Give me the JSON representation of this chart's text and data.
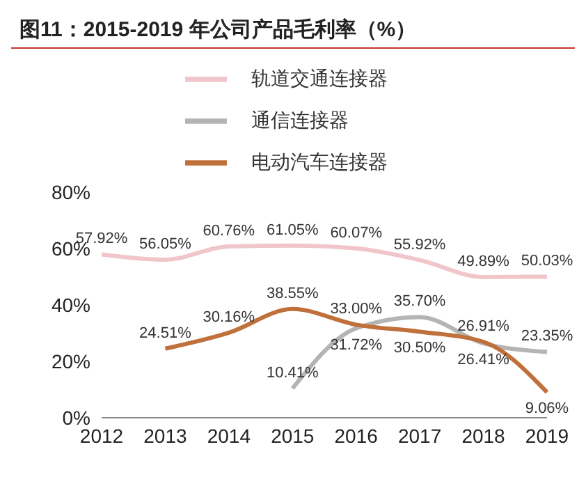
{
  "chart_data": {
    "type": "line",
    "title": "图11：2015-2019 年公司产品毛利率（%）",
    "categories": [
      "2012",
      "2013",
      "2014",
      "2015",
      "2016",
      "2017",
      "2018",
      "2019"
    ],
    "series": [
      {
        "name": "轨道交通连接器",
        "color": "#f0c6ca",
        "values": [
          57.92,
          56.05,
          60.76,
          61.05,
          60.07,
          55.92,
          49.89,
          50.03
        ],
        "value_labels": [
          "57.92%",
          "56.05%",
          "60.76%",
          "61.05%",
          "60.07%",
          "55.92%",
          "49.89%",
          "50.03%"
        ]
      },
      {
        "name": "通信连接器",
        "color": "#b4b4b4",
        "values": [
          null,
          null,
          null,
          10.41,
          31.72,
          35.7,
          26.41,
          23.35
        ],
        "value_labels": [
          null,
          null,
          null,
          "10.41%",
          "31.72%",
          "35.70%",
          "26.41%",
          "23.35%"
        ]
      },
      {
        "name": "电动汽车连接器",
        "color": "#c0703a",
        "values": [
          null,
          24.51,
          30.16,
          38.55,
          33.0,
          30.5,
          26.91,
          9.06
        ],
        "value_labels": [
          null,
          "24.51%",
          "30.16%",
          "38.55%",
          "33.00%",
          "30.50%",
          "26.91%",
          "9.06%"
        ]
      }
    ],
    "ylim": [
      0,
      80
    ],
    "yticks": [
      {
        "value": 0,
        "label": "0%"
      },
      {
        "value": 20,
        "label": "20%"
      },
      {
        "value": 40,
        "label": "40%"
      },
      {
        "value": 60,
        "label": "60%"
      },
      {
        "value": 80,
        "label": "80%"
      }
    ],
    "grid": false,
    "legend": "top",
    "marker": "none"
  }
}
